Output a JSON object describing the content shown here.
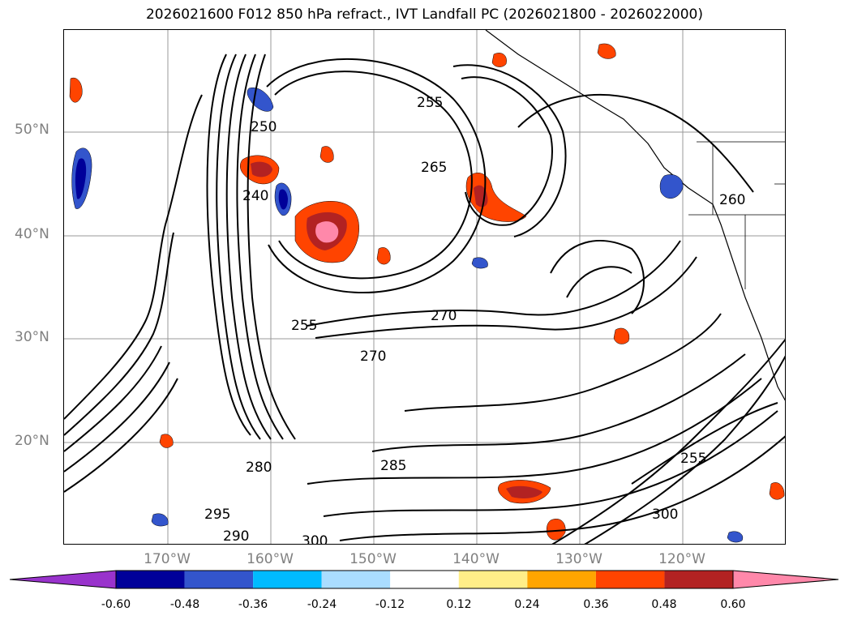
{
  "title": "2026021600 F012 850 hPa refract., IVT Landfall PC (2026021800 - 2026022000)",
  "lat_labels": [
    "50°N",
    "40°N",
    "30°N",
    "20°N"
  ],
  "lon_labels": [
    "170°W",
    "160°W",
    "150°W",
    "140°W",
    "130°W",
    "120°W"
  ],
  "contour_labels": [
    "250",
    "255",
    "265",
    "270",
    "240",
    "285",
    "290",
    "295",
    "300",
    "260",
    "280"
  ],
  "colorbar": {
    "ticks": [
      "-0.60",
      "-0.48",
      "-0.36",
      "-0.24",
      "-0.12",
      "0.12",
      "0.24",
      "0.36",
      "0.48",
      "0.60"
    ],
    "colors": [
      "#9933cc",
      "#000099",
      "#3355cc",
      "#00bbff",
      "#aaddff",
      "#ffffff",
      "#ffee88",
      "#ffa500",
      "#ff4400",
      "#b22222",
      "#ff88aa"
    ]
  }
}
